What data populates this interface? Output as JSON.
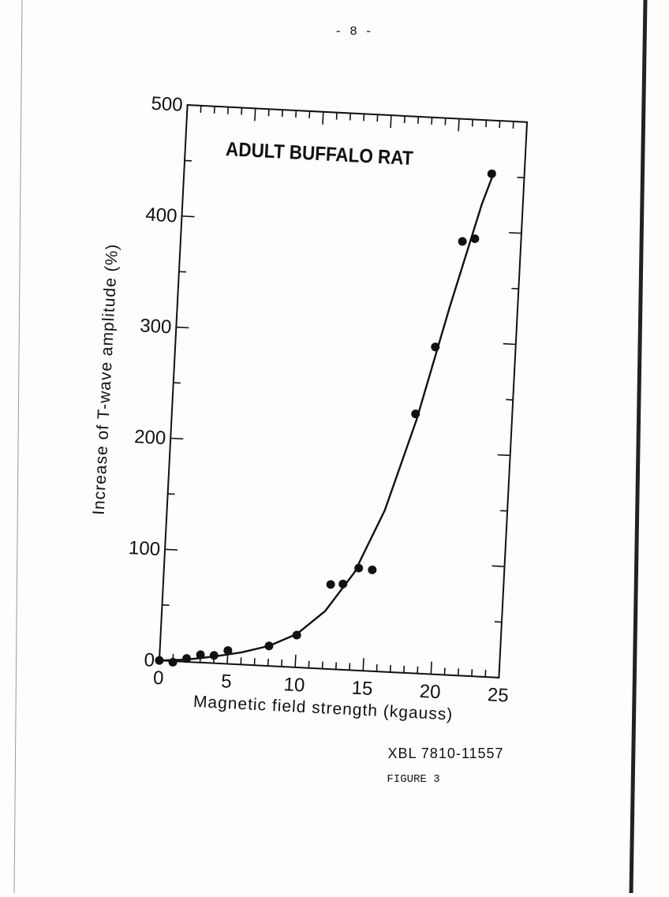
{
  "page_number": "- 8 -",
  "chart_data": {
    "type": "scatter",
    "title": "ADULT BUFFALO RAT",
    "x_label": "Magnetic field strength (kgauss)",
    "y_label": "Increase of T-wave amplitude (%)",
    "x": [
      0,
      1,
      2,
      3,
      4,
      5,
      8,
      10,
      12.3,
      13.2,
      14.3,
      15.3,
      17.9,
      19.1,
      20.7,
      21.6,
      22.6
    ],
    "values": [
      0,
      -1,
      3,
      7,
      7,
      12,
      18,
      29,
      76,
      77,
      92,
      91,
      233,
      294,
      390,
      393,
      452
    ],
    "color": "#111111",
    "curve": {
      "x": [
        0,
        2,
        4,
        6,
        8,
        10,
        12,
        14,
        16,
        18,
        20,
        22,
        22.8
      ],
      "values": [
        0,
        2,
        6,
        11,
        18,
        30,
        52,
        88,
        145,
        228,
        330,
        425,
        455
      ]
    },
    "xlim": [
      0,
      25
    ],
    "ylim": [
      0,
      500
    ],
    "xticks": [
      0,
      5,
      10,
      15,
      20,
      25
    ],
    "yticks": [
      0,
      100,
      200,
      300,
      400,
      500
    ],
    "xminorticks": [
      1,
      2,
      3,
      4,
      6,
      7,
      8,
      9,
      11,
      12,
      13,
      14,
      16,
      17,
      18,
      19,
      21,
      22,
      23,
      24
    ],
    "yminorticks": [
      50,
      150,
      250,
      350,
      450
    ]
  },
  "caption": {
    "code": "XBL 7810-11557",
    "figure": "FIGURE 3"
  }
}
